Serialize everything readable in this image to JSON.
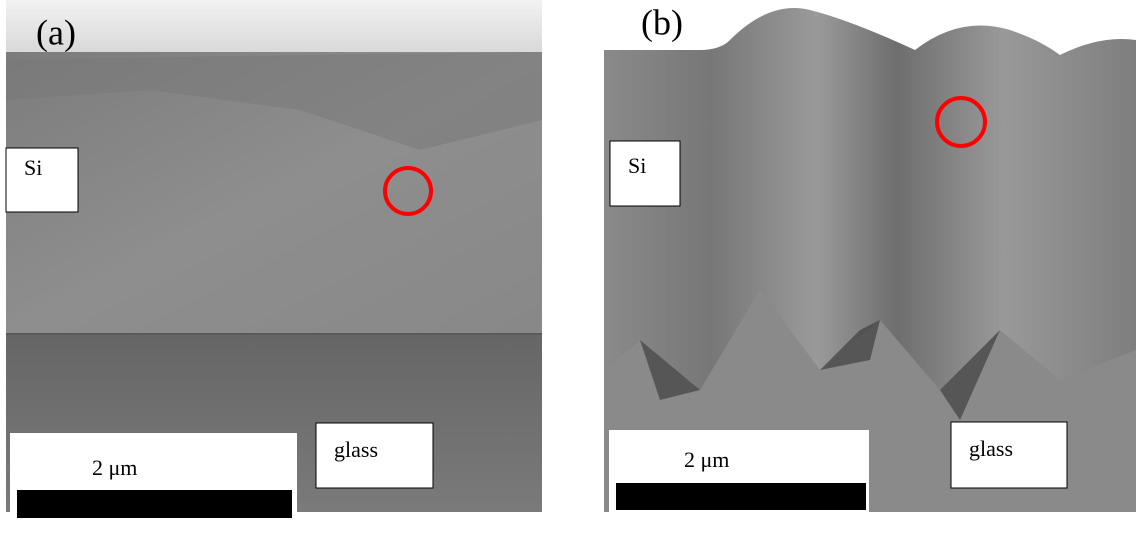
{
  "panels": [
    {
      "label": "(a)",
      "regions": {
        "top": "Si",
        "bottom": "glass"
      },
      "scale_bar": "2 μm"
    },
    {
      "label": "(b)",
      "regions": {
        "top": "Si",
        "bottom": "glass"
      },
      "scale_bar": "2 μm"
    }
  ]
}
